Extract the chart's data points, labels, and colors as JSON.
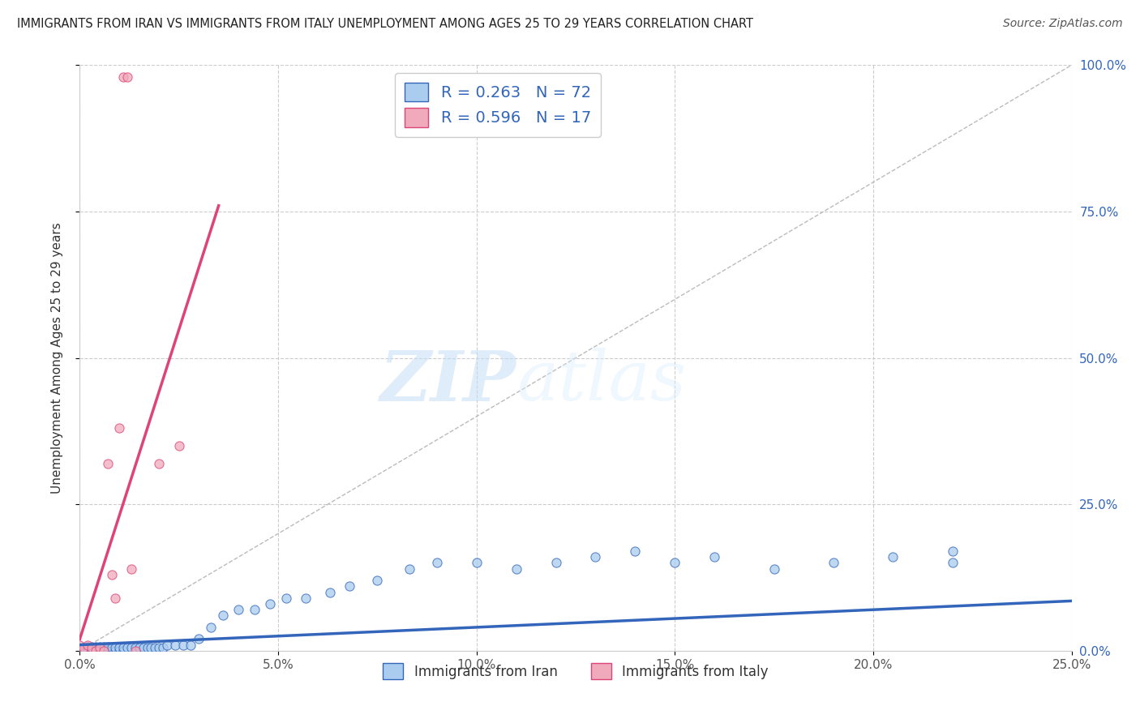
{
  "title": "IMMIGRANTS FROM IRAN VS IMMIGRANTS FROM ITALY UNEMPLOYMENT AMONG AGES 25 TO 29 YEARS CORRELATION CHART",
  "source": "Source: ZipAtlas.com",
  "ylabel": "Unemployment Among Ages 25 to 29 years",
  "legend_label1": "Immigrants from Iran",
  "legend_label2": "Immigrants from Italy",
  "R1": "0.263",
  "N1": "72",
  "R2": "0.596",
  "N2": "17",
  "xlim": [
    0.0,
    0.25
  ],
  "ylim": [
    0.0,
    1.0
  ],
  "xticks": [
    0.0,
    0.05,
    0.1,
    0.15,
    0.2,
    0.25
  ],
  "yticks": [
    0.0,
    0.25,
    0.5,
    0.75,
    1.0
  ],
  "xtick_labels": [
    "0.0%",
    "5.0%",
    "10.0%",
    "15.0%",
    "20.0%",
    "25.0%"
  ],
  "ytick_labels": [
    "0.0%",
    "25.0%",
    "50.0%",
    "75.0%",
    "100.0%"
  ],
  "color_iran": "#aaccee",
  "color_italy": "#f0aabb",
  "trendline_iran": "#3366bb",
  "trendline_italy": "#dd4477",
  "background_color": "#ffffff",
  "grid_color": "#cccccc",
  "watermark_zip": "ZIP",
  "watermark_atlas": "atlas",
  "iran_x": [
    0.0,
    0.001,
    0.001,
    0.002,
    0.002,
    0.002,
    0.003,
    0.003,
    0.003,
    0.004,
    0.004,
    0.004,
    0.005,
    0.005,
    0.005,
    0.006,
    0.006,
    0.006,
    0.007,
    0.007,
    0.007,
    0.008,
    0.008,
    0.009,
    0.009,
    0.01,
    0.01,
    0.011,
    0.011,
    0.012,
    0.013,
    0.014,
    0.015,
    0.016,
    0.017,
    0.018,
    0.019,
    0.02,
    0.021,
    0.022,
    0.024,
    0.026,
    0.028,
    0.03,
    0.033,
    0.036,
    0.04,
    0.044,
    0.048,
    0.052,
    0.057,
    0.063,
    0.068,
    0.075,
    0.083,
    0.09,
    0.1,
    0.11,
    0.12,
    0.13,
    0.14,
    0.15,
    0.16,
    0.175,
    0.19,
    0.205,
    0.22,
    0.0,
    0.001,
    0.002,
    0.003,
    0.22
  ],
  "iran_y": [
    0.0,
    0.0,
    0.005,
    0.0,
    0.003,
    0.007,
    0.0,
    0.003,
    0.006,
    0.0,
    0.003,
    0.006,
    0.0,
    0.003,
    0.006,
    0.0,
    0.003,
    0.007,
    0.0,
    0.003,
    0.007,
    0.0,
    0.005,
    0.0,
    0.005,
    0.0,
    0.005,
    0.0,
    0.005,
    0.005,
    0.005,
    0.005,
    0.005,
    0.005,
    0.005,
    0.005,
    0.005,
    0.005,
    0.005,
    0.01,
    0.01,
    0.01,
    0.01,
    0.02,
    0.04,
    0.06,
    0.07,
    0.07,
    0.08,
    0.09,
    0.09,
    0.1,
    0.11,
    0.12,
    0.14,
    0.15,
    0.15,
    0.14,
    0.15,
    0.16,
    0.17,
    0.15,
    0.16,
    0.14,
    0.15,
    0.16,
    0.17,
    0.0,
    0.0,
    0.0,
    0.0,
    0.15
  ],
  "italy_x": [
    0.0,
    0.001,
    0.002,
    0.003,
    0.004,
    0.005,
    0.006,
    0.007,
    0.008,
    0.009,
    0.01,
    0.011,
    0.012,
    0.013,
    0.014,
    0.02,
    0.025
  ],
  "italy_y": [
    0.01,
    0.005,
    0.01,
    0.005,
    0.0,
    0.005,
    0.0,
    0.32,
    0.13,
    0.09,
    0.38,
    0.98,
    0.98,
    0.14,
    0.0,
    0.32,
    0.35
  ],
  "italy_trendline_x0": 0.0,
  "italy_trendline_y0": 0.02,
  "italy_trendline_x1": 0.035,
  "italy_trendline_y1": 0.76,
  "iran_trendline_x0": 0.0,
  "iran_trendline_y0": 0.01,
  "iran_trendline_x1": 0.25,
  "iran_trendline_y1": 0.085
}
